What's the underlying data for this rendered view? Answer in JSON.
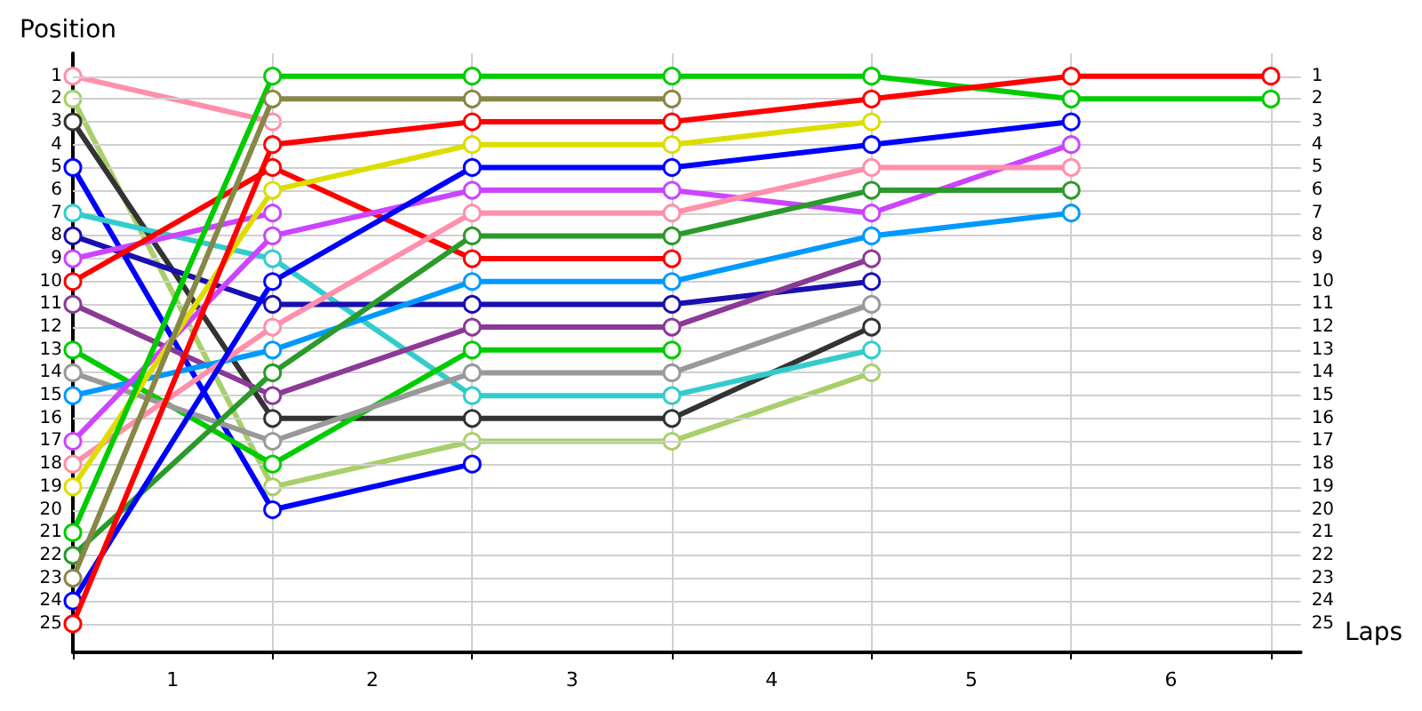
{
  "chart_data": {
    "type": "line",
    "xlabel": "Laps",
    "ylabel": "Position",
    "x": [
      0,
      1,
      2,
      3,
      4,
      5,
      6
    ],
    "xlim": [
      0,
      6.15
    ],
    "xticks": [
      {
        "value": 0,
        "label": null
      },
      {
        "value": 0.5,
        "label": "1"
      },
      {
        "value": 1,
        "label": null
      },
      {
        "value": 1.5,
        "label": "2"
      },
      {
        "value": 2,
        "label": null
      },
      {
        "value": 2.5,
        "label": "3"
      },
      {
        "value": 3,
        "label": null
      },
      {
        "value": 3.5,
        "label": "4"
      },
      {
        "value": 4,
        "label": null
      },
      {
        "value": 4.5,
        "label": "5"
      },
      {
        "value": 5,
        "label": null
      },
      {
        "value": 5.5,
        "label": "6"
      },
      {
        "value": 6,
        "label": null
      }
    ],
    "ylim": [
      26.25,
      0
    ],
    "yticks": [
      1,
      2,
      3,
      4,
      5,
      6,
      7,
      8,
      9,
      10,
      11,
      12,
      13,
      14,
      15,
      16,
      17,
      18,
      19,
      20,
      21,
      22,
      23,
      24,
      25
    ],
    "y2lim": [
      26.25,
      0
    ],
    "y2ticks": [
      1,
      2,
      3,
      4,
      5,
      6,
      7,
      8,
      9,
      10,
      11,
      12,
      13,
      14,
      15,
      16,
      17,
      18,
      19,
      20,
      21,
      22,
      23,
      24,
      25
    ],
    "grid": true,
    "marker": "circle",
    "line_style": "solid",
    "series": [
      {
        "color": "#ff8fab",
        "values": [
          1,
          3,
          null,
          null,
          null,
          null,
          null
        ]
      },
      {
        "color": "#a8cf6a",
        "values": [
          2,
          19,
          17,
          17,
          14,
          null,
          null
        ]
      },
      {
        "color": "#333333",
        "values": [
          3,
          16,
          16,
          16,
          12,
          null,
          null
        ]
      },
      {
        "color": "#0000ff",
        "values": [
          5,
          20,
          18,
          null,
          null,
          null,
          null
        ]
      },
      {
        "color": "#33cccc",
        "values": [
          7,
          9,
          15,
          15,
          13,
          null,
          null
        ]
      },
      {
        "color": "#1a0fb0",
        "values": [
          8,
          11,
          11,
          11,
          10,
          null,
          null
        ]
      },
      {
        "color": "#cc44ff",
        "values": [
          9,
          7,
          null,
          null,
          null,
          null,
          null
        ]
      },
      {
        "color": "#ff0000",
        "values": [
          10,
          5,
          9,
          9,
          null,
          null,
          null
        ]
      },
      {
        "color": "#8b3a96",
        "values": [
          11,
          15,
          12,
          12,
          9,
          null,
          null
        ]
      },
      {
        "color": "#00cc00",
        "values": [
          13,
          18,
          13,
          13,
          null,
          null,
          null
        ]
      },
      {
        "color": "#999999",
        "values": [
          14,
          17,
          14,
          14,
          11,
          null,
          null
        ]
      },
      {
        "color": "#0099ff",
        "values": [
          15,
          13,
          10,
          10,
          8,
          7,
          null
        ]
      },
      {
        "color": "#cc44ff",
        "values": [
          17,
          8,
          6,
          6,
          7,
          4,
          null
        ]
      },
      {
        "color": "#ff8fab",
        "values": [
          18,
          12,
          7,
          7,
          5,
          5,
          null
        ]
      },
      {
        "color": "#dddd00",
        "values": [
          19,
          6,
          4,
          4,
          3,
          null,
          null
        ]
      },
      {
        "color": "#00cc00",
        "values": [
          21,
          1,
          1,
          1,
          1,
          2,
          2
        ]
      },
      {
        "color": "#2a9a2a",
        "values": [
          22,
          14,
          8,
          8,
          6,
          6,
          null
        ]
      },
      {
        "color": "#878748",
        "values": [
          23,
          2,
          2,
          2,
          null,
          null,
          null
        ]
      },
      {
        "color": "#0000ff",
        "values": [
          24,
          10,
          5,
          5,
          4,
          3,
          null
        ]
      },
      {
        "color": "#ff0000",
        "values": [
          25,
          4,
          3,
          3,
          2,
          1,
          1
        ]
      }
    ]
  }
}
